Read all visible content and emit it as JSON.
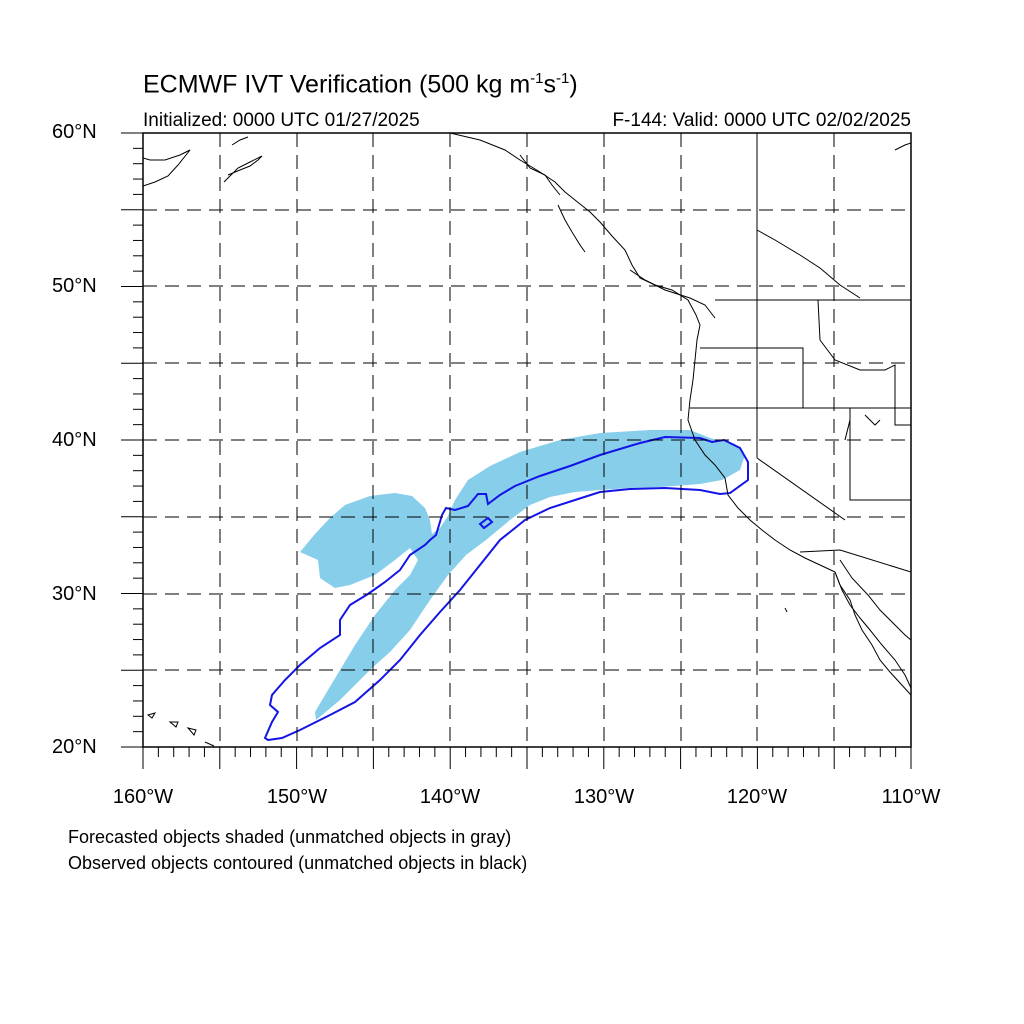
{
  "title": {
    "main": "ECMWF IVT Verification (500 kg m",
    "exp1": "-1",
    "mid": "s",
    "exp2": "-1",
    "end": ")"
  },
  "initialized": "Initialized: 0000 UTC 01/27/2025",
  "valid": "F-144: Valid: 0000 UTC 02/02/2025",
  "lat_labels": [
    "60°N",
    "50°N",
    "40°N",
    "30°N",
    "20°N"
  ],
  "lon_labels": [
    "160°W",
    "150°W",
    "140°W",
    "130°W",
    "120°W",
    "110°W"
  ],
  "legend": [
    "Forecasted objects shaded (unmatched objects in gray)",
    "Observed objects contoured (unmatched objects in black)"
  ],
  "colors": {
    "forecast_fill": "#87ceeb",
    "observed_contour": "#1414e6",
    "coastline": "#000000",
    "grid": "#000000"
  },
  "map": {
    "projection": "cylindrical equidistant",
    "lon_range": [
      -160,
      -110
    ],
    "lat_range": [
      20,
      60
    ],
    "grid_spacing_deg": 5,
    "grid_style": "dashed"
  }
}
